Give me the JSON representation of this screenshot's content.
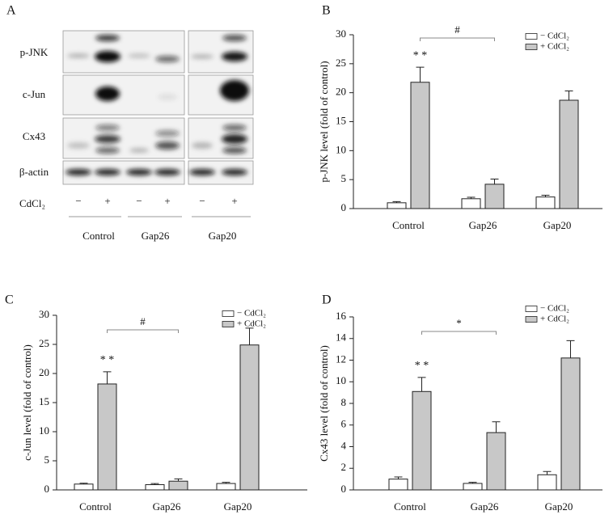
{
  "blot": {
    "panel_label": "A",
    "rows": [
      "p-JNK",
      "c-Jun",
      "Cx43",
      "β-actin"
    ],
    "treatment_label": "CdCl₂",
    "treatment_signs": [
      "−",
      "+",
      "−",
      "+",
      "−",
      "+"
    ],
    "groups": [
      "Control",
      "Gap26",
      "Gap20"
    ]
  },
  "chart_data": [
    {
      "type": "bar",
      "panel_label": "B",
      "y_label": "p-JNK level (fold of control)",
      "categories": [
        "Control",
        "Gap26",
        "Gap20"
      ],
      "series": [
        {
          "name": "− CdCl₂",
          "color": "#ffffff",
          "values": [
            1.0,
            1.7,
            2.0
          ],
          "errors": [
            0.2,
            0.25,
            0.3
          ]
        },
        {
          "name": "+ CdCl₂",
          "color": "#c8c8c8",
          "values": [
            21.8,
            4.2,
            18.7
          ],
          "errors": [
            2.6,
            0.9,
            1.6
          ]
        }
      ],
      "ylim": [
        0,
        30
      ],
      "yticks": [
        0,
        5,
        10,
        15,
        20,
        25,
        30
      ],
      "significance": "* *",
      "comparison": "#"
    },
    {
      "type": "bar",
      "panel_label": "C",
      "y_label": "c-Jun level (fold of control)",
      "categories": [
        "Control",
        "Gap26",
        "Gap20"
      ],
      "series": [
        {
          "name": "− CdCl₂",
          "color": "#ffffff",
          "values": [
            1.0,
            0.9,
            1.1
          ],
          "errors": [
            0.15,
            0.2,
            0.2
          ]
        },
        {
          "name": "+ CdCl₂",
          "color": "#c8c8c8",
          "values": [
            18.2,
            1.5,
            24.9
          ],
          "errors": [
            2.1,
            0.4,
            2.9
          ]
        }
      ],
      "ylim": [
        0,
        30
      ],
      "yticks": [
        0,
        5,
        10,
        15,
        20,
        25,
        30
      ],
      "significance": "* *",
      "comparison": "#"
    },
    {
      "type": "bar",
      "panel_label": "D",
      "y_label": "Cx43 level (fold of control)",
      "categories": [
        "Control",
        "Gap26",
        "Gap20"
      ],
      "series": [
        {
          "name": "− CdCl₂",
          "color": "#ffffff",
          "values": [
            1.0,
            0.6,
            1.4
          ],
          "errors": [
            0.2,
            0.1,
            0.3
          ]
        },
        {
          "name": "+ CdCl₂",
          "color": "#c8c8c8",
          "values": [
            9.1,
            5.3,
            12.2
          ],
          "errors": [
            1.3,
            1.0,
            1.6
          ]
        }
      ],
      "ylim": [
        0,
        16
      ],
      "yticks": [
        0,
        2,
        4,
        6,
        8,
        10,
        12,
        14,
        16
      ],
      "significance": "* *",
      "comparison": "*"
    }
  ]
}
